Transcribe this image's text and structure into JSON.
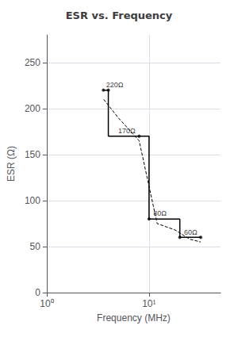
{
  "chart_data": {
    "type": "line",
    "title": "ESR vs. Frequency",
    "x_label": "Frequency (MHz)",
    "y_label": "ESR (Ω)",
    "log": "x",
    "grid": true,
    "xlim": [
      1,
      50
    ],
    "xticks": [
      {
        "value": 1,
        "label": "10⁰"
      },
      {
        "value": 10,
        "label": "10¹"
      }
    ],
    "ylim": [
      0,
      280
    ],
    "yticks": [
      0,
      50,
      100,
      150,
      200,
      250
    ],
    "series": [
      {
        "type": "line",
        "color": "#000000",
        "line_style": "solid",
        "x": [
          3.579,
          4.0,
          4.0,
          10.0,
          10.0,
          20.0,
          20.0,
          32.0
        ],
        "values": [
          220,
          220,
          170,
          170,
          80,
          80,
          60,
          60
        ]
      },
      {
        "type": "line",
        "color": "#000000",
        "line_style": "dashed",
        "x": [
          3.6,
          5,
          8,
          12,
          18,
          25,
          32
        ],
        "values": [
          210,
          190,
          165,
          75,
          68,
          58,
          55
        ]
      },
      {
        "type": "scatter",
        "color": "#000000",
        "marker": "o",
        "x": [
          3.579,
          4.0,
          8.0,
          10.0,
          20.0,
          32.0
        ],
        "values": [
          220,
          220,
          170,
          80,
          60,
          60
        ]
      }
    ],
    "annotations": [
      {
        "text": "220Ω",
        "x": 3.8,
        "y": 222
      },
      {
        "text": "170Ω",
        "x": 5.0,
        "y": 172
      },
      {
        "text": "80Ω",
        "x": 11.0,
        "y": 82
      },
      {
        "text": "60Ω",
        "x": 22.0,
        "y": 62
      }
    ]
  }
}
